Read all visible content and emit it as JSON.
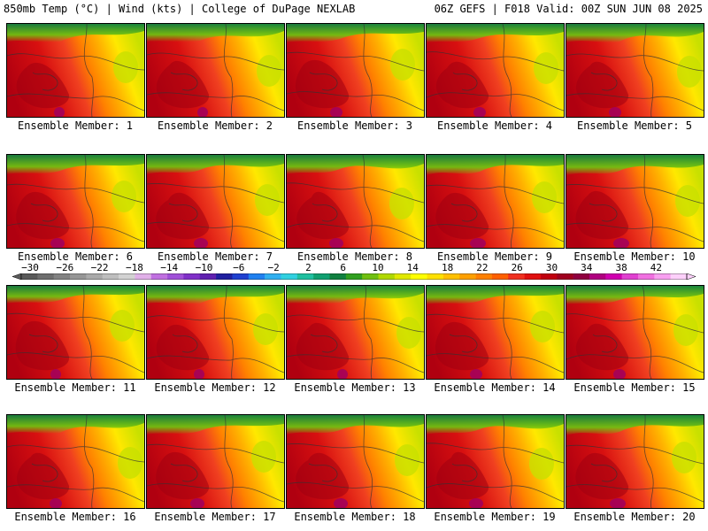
{
  "header": {
    "left": "850mb Temp (°C) | Wind (kts) | College of DuPage NEXLAB",
    "right": "06Z GEFS | F018 Valid: 00Z SUN JUN 08 2025"
  },
  "panels": [
    {
      "label": "Ensemble Member: 1"
    },
    {
      "label": "Ensemble Member: 2"
    },
    {
      "label": "Ensemble Member: 3"
    },
    {
      "label": "Ensemble Member: 4"
    },
    {
      "label": "Ensemble Member: 5"
    },
    {
      "label": "Ensemble Member: 6"
    },
    {
      "label": "Ensemble Member: 7"
    },
    {
      "label": "Ensemble Member: 8"
    },
    {
      "label": "Ensemble Member: 9"
    },
    {
      "label": "Ensemble Member: 10"
    },
    {
      "label": "Ensemble Member: 11"
    },
    {
      "label": "Ensemble Member: 12"
    },
    {
      "label": "Ensemble Member: 13"
    },
    {
      "label": "Ensemble Member: 14"
    },
    {
      "label": "Ensemble Member: 15"
    },
    {
      "label": "Ensemble Member: 16"
    },
    {
      "label": "Ensemble Member: 17"
    },
    {
      "label": "Ensemble Member: 18"
    },
    {
      "label": "Ensemble Member: 19"
    },
    {
      "label": "Ensemble Member: 20"
    }
  ],
  "colorbar": {
    "labels": [
      "−30",
      "−26",
      "−22",
      "−18",
      "−14",
      "−10",
      "−6",
      "−2",
      "2",
      "6",
      "10",
      "14",
      "18",
      "22",
      "26",
      "30",
      "34",
      "38",
      "42"
    ],
    "colors": [
      "#5a5a5a",
      "#6e6e6e",
      "#828282",
      "#969696",
      "#aaaaaa",
      "#bebebe",
      "#d2d2d2",
      "#e0b0e8",
      "#c070e0",
      "#a050d8",
      "#8030c8",
      "#6020b0",
      "#2020a0",
      "#2040d0",
      "#2080f0",
      "#30b0f0",
      "#30d0e0",
      "#20c0a0",
      "#10a070",
      "#108040",
      "#30a020",
      "#70c010",
      "#b0d800",
      "#e0e800",
      "#ffff00",
      "#ffe000",
      "#ffc000",
      "#ffa000",
      "#ff8000",
      "#ff6000",
      "#f03020",
      "#e01010",
      "#c00010",
      "#a00020",
      "#900040",
      "#b00080",
      "#d000b0",
      "#e040d0",
      "#f070e0",
      "#f8a0f0",
      "#fcd0fa"
    ]
  }
}
